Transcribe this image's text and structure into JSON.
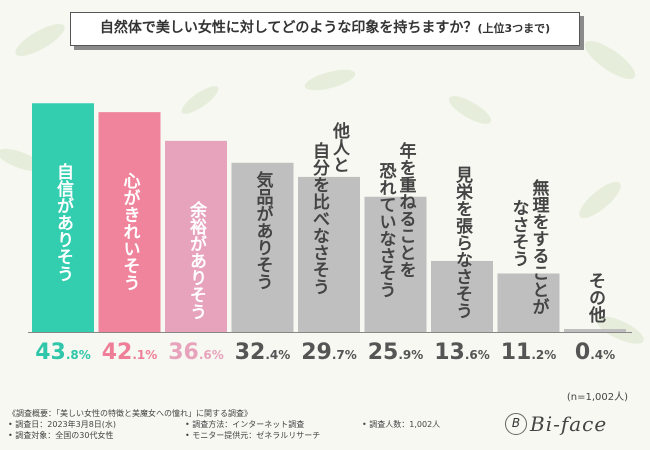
{
  "title": "自然体で美しい女性に対してどのような印象を持ちますか？",
  "title_sub": "(上位3つまで)",
  "chart_data": {
    "type": "bar",
    "categories": [
      "自信がありそう",
      "心がきれいそう",
      "余裕がありそう",
      "気品がありそう",
      "他人と自分を比べなさそう",
      "年を重ねることを恐れていなさそう",
      "見栄を張らなさそう",
      "無理をすることがなさそう",
      "その他"
    ],
    "label_lines": [
      [
        "自信がありそう"
      ],
      [
        "心がきれいそう"
      ],
      [
        "余裕がありそう"
      ],
      [
        "気品がありそう"
      ],
      [
        "他人と",
        "自分を比べなさそう"
      ],
      [
        "年を重ねることを",
        "恐れていなさそう"
      ],
      [
        "見栄を張らなさそう"
      ],
      [
        "無理をすることが",
        "なさそう"
      ],
      [
        "その他"
      ]
    ],
    "values": [
      43.8,
      42.1,
      36.6,
      32.4,
      29.7,
      25.9,
      13.6,
      11.2,
      0.4
    ],
    "value_labels": [
      [
        "43",
        ".8%"
      ],
      [
        "42",
        ".1%"
      ],
      [
        "36",
        ".6%"
      ],
      [
        "32",
        ".4%"
      ],
      [
        "29",
        ".7%"
      ],
      [
        "25",
        ".9%"
      ],
      [
        "13",
        ".6%"
      ],
      [
        "11",
        ".2%"
      ],
      [
        "0",
        ".4%"
      ]
    ],
    "colors": [
      "#33cdb0",
      "#f0849c",
      "#e7a3bc",
      "#bfbfbf",
      "#bfbfbf",
      "#bfbfbf",
      "#bfbfbf",
      "#bfbfbf",
      "#bfbfbf"
    ],
    "value_colors": [
      "#2fc6a9",
      "#ef7f98",
      "#e7a3bc",
      "#555555",
      "#555555",
      "#555555",
      "#555555",
      "#555555",
      "#555555"
    ],
    "label_styles": [
      "light",
      "light",
      "light",
      "dark",
      "dark",
      "dark",
      "dark",
      "dark",
      "dark"
    ],
    "ylim": [
      0,
      45
    ]
  },
  "n_note": "(n=1,002人)",
  "footer": {
    "overview": "《調査概要：「美しい女性の特徴と美魔女への憧れ」に関する調査》",
    "date": "• 調査日：2023年3月8日(水)",
    "target": "• 調査対象：全国の30代女性",
    "method": "• 調査方法：インターネット調査",
    "provider": "• モニター提供元：ゼネラルリサーチ",
    "count": "• 調査人数：1,002人"
  },
  "logo": "Bi-face",
  "logo_mark": "B"
}
